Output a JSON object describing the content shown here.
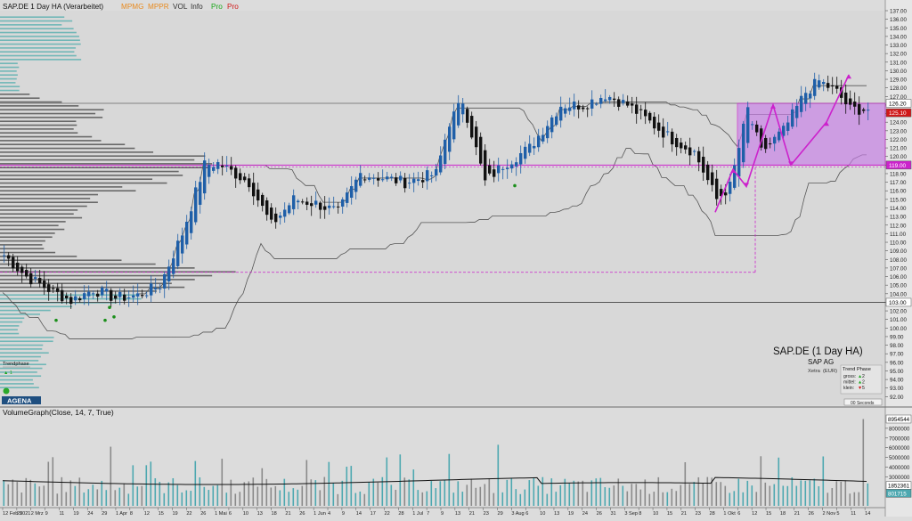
{
  "header": {
    "title": "SAP.DE 1 Day HA (Verarbeitet)",
    "indicators": [
      {
        "label": "MPMG",
        "color": "#e88b20"
      },
      {
        "label": "MPPR",
        "color": "#e88b20"
      },
      {
        "label": "VOL",
        "color": "#303030"
      },
      {
        "label": "Info",
        "color": "#303030"
      },
      {
        "label": "Pro",
        "color": "#1aa61a"
      },
      {
        "label": "Pro",
        "color": "#d01818"
      }
    ]
  },
  "colors": {
    "background": "#dcdcdc",
    "bull": "#1f5fa8",
    "bear": "#111111",
    "profile": "#555555",
    "profile_low": "#5fb2b2",
    "highlight": "#c87ee8",
    "magenta": "#cc22cc",
    "price_red": "#d01818",
    "volume": "#4da8b0",
    "volume_grey": "#8a8a8a",
    "green_dot": "#1b8f1b"
  },
  "info_box": {
    "title": "SAP.DE (1 Day HA)",
    "company": "SAP AG",
    "exchange": "Xetra",
    "currency": "(EUR)",
    "trend_title": "Trend Phase",
    "rows": [
      {
        "label": "gross:",
        "arrow": "▲",
        "value": "2",
        "color": "#1aa61a"
      },
      {
        "label": "mittel:",
        "arrow": "▲",
        "value": "2",
        "color": "#1aa61a"
      },
      {
        "label": "klein:",
        "arrow": "▼",
        "value": "5",
        "color": "#d01818"
      }
    ],
    "timer": "00 Seconds"
  },
  "trendphase": {
    "label": "Trendphase",
    "value": "▲ 1"
  },
  "logo": {
    "text": "AGENA"
  },
  "volume_panel": {
    "title": "VolumeGraph(Close, 14, 7, True)",
    "ticks": [
      "8000000",
      "7000000",
      "6000000",
      "5000000",
      "4000000",
      "3000000"
    ],
    "tags": [
      {
        "text": "8954544",
        "bg": "#ffffff",
        "fg": "#000000"
      },
      {
        "text": "1852361",
        "bg": "#ffffff",
        "fg": "#000000"
      },
      {
        "text": "801715",
        "bg": "#4da8b0",
        "fg": "#ffffff"
      }
    ]
  },
  "price_tags": [
    {
      "text": "126.20",
      "value": 126.2,
      "bg": "#ffffff",
      "fg": "#000000"
    },
    {
      "text": "125.10",
      "value": 125.1,
      "bg": "#d01818",
      "fg": "#ffffff"
    },
    {
      "text": "119.00",
      "value": 119.0,
      "bg": "#cc22cc",
      "fg": "#ffffff"
    },
    {
      "text": "103.00",
      "value": 103.0,
      "bg": "#ffffff",
      "fg": "#000000"
    }
  ],
  "x_axis": {
    "labels": [
      "12 Feb 2021",
      "25",
      "2 Mrz",
      "9",
      "11",
      "19",
      "24",
      "29",
      "1 Apr",
      "8",
      "12",
      "15",
      "19",
      "22",
      "26",
      "1 Mai",
      "6",
      "10",
      "13",
      "18",
      "21",
      "26",
      "1 Jun",
      "4",
      "9",
      "14",
      "17",
      "22",
      "28",
      "1 Jul",
      "7",
      "9",
      "13",
      "21",
      "23",
      "29",
      "3 Aug",
      "6",
      "10",
      "13",
      "19",
      "24",
      "26",
      "31",
      "3 Sep",
      "8",
      "10",
      "15",
      "21",
      "23",
      "28",
      "1 Okt",
      "6",
      "12",
      "15",
      "18",
      "21",
      "26",
      "2 Nov",
      "5",
      "11",
      "14"
    ]
  },
  "chart_data": {
    "type": "candlestick",
    "title": "SAP.DE 1 Day HA (Verarbeitet)",
    "y_axis": {
      "min": 91,
      "max": 137,
      "step": 1
    },
    "volume_axis": {
      "min": 0,
      "max": 9000000
    },
    "levels": [
      126.2,
      119.0,
      103.0,
      106.5
    ],
    "box": {
      "start_index": 165,
      "end_index": 194,
      "top": 126.2,
      "bottom": 119.0
    },
    "dates_count": 195,
    "anchors": [
      [
        0,
        108.5
      ],
      [
        5,
        106
      ],
      [
        10,
        104.5
      ],
      [
        15,
        103.2
      ],
      [
        20,
        104.5
      ],
      [
        25,
        103.5
      ],
      [
        30,
        103.8
      ],
      [
        35,
        105
      ],
      [
        40,
        111
      ],
      [
        45,
        119
      ],
      [
        48,
        119.2
      ],
      [
        55,
        117
      ],
      [
        60,
        112
      ],
      [
        65,
        115
      ],
      [
        70,
        114.5
      ],
      [
        75,
        113.5
      ],
      [
        80,
        118
      ],
      [
        85,
        117.5
      ],
      [
        90,
        117
      ],
      [
        97,
        118
      ],
      [
        100,
        124
      ],
      [
        103,
        126.5
      ],
      [
        108,
        117
      ],
      [
        112,
        119
      ],
      [
        118,
        121
      ],
      [
        125,
        126
      ],
      [
        130,
        126
      ],
      [
        135,
        127.2
      ],
      [
        140,
        126
      ],
      [
        145,
        124
      ],
      [
        150,
        122
      ],
      [
        155,
        120.5
      ],
      [
        160,
        115
      ],
      [
        163,
        116.5
      ],
      [
        167,
        125.5
      ],
      [
        170,
        120.5
      ],
      [
        175,
        123
      ],
      [
        180,
        127.5
      ],
      [
        183,
        128.8
      ],
      [
        187,
        127.5
      ],
      [
        190,
        125.5
      ]
    ],
    "profile_lower_color_cutoff": 104.2
  }
}
